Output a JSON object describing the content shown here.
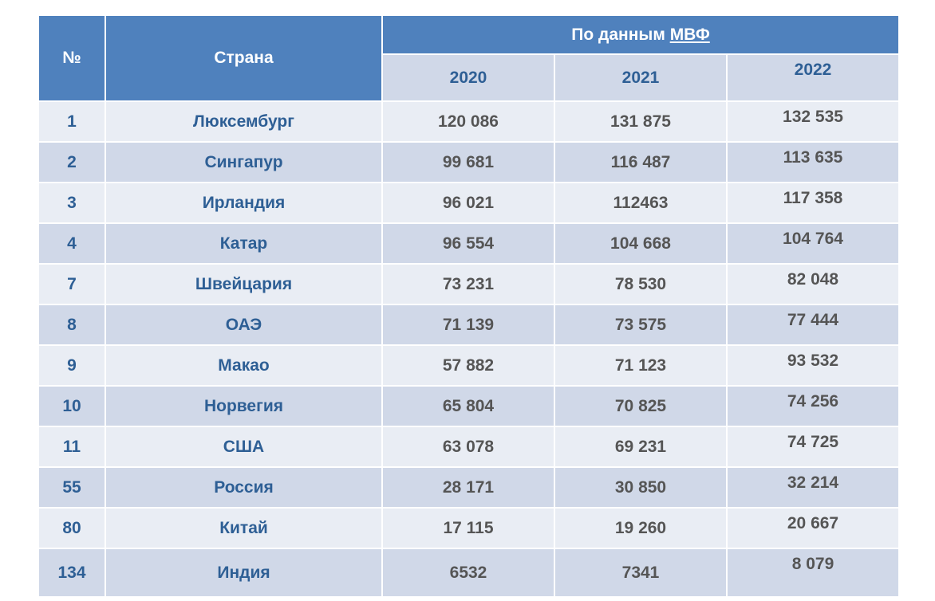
{
  "header": {
    "number": "№",
    "country": "Страна",
    "group_prefix": "По данным ",
    "group_link": "МВФ",
    "years": [
      "2020",
      "2021",
      "2022"
    ]
  },
  "colors": {
    "header": "#4f81bd",
    "row_light": "#e9edf4",
    "row_dark": "#d0d8e8",
    "label_text": "#2e5f95",
    "value_text": "#555555"
  },
  "rows": [
    {
      "rank": "1",
      "country": "Люксембург",
      "v2020": "120 086",
      "v2021": "131 875",
      "v2022": "132 535"
    },
    {
      "rank": "2",
      "country": "Сингапур",
      "v2020": "99 681",
      "v2021": "116 487",
      "v2022": "113 635"
    },
    {
      "rank": "3",
      "country": "Ирландия",
      "v2020": "96 021",
      "v2021": "112463",
      "v2022": "117 358"
    },
    {
      "rank": "4",
      "country": "Катар",
      "v2020": "96 554",
      "v2021": "104 668",
      "v2022": "104 764"
    },
    {
      "rank": "7",
      "country": "Швейцария",
      "v2020": "73 231",
      "v2021": "78 530",
      "v2022": "82 048"
    },
    {
      "rank": "8",
      "country": "ОАЭ",
      "v2020": "71 139",
      "v2021": "73 575",
      "v2022": "77 444"
    },
    {
      "rank": "9",
      "country": "Макао",
      "v2020": "57 882",
      "v2021": "71 123",
      "v2022": "93 532"
    },
    {
      "rank": "10",
      "country": "Норвегия",
      "v2020": "65 804",
      "v2021": "70 825",
      "v2022": "74 256"
    },
    {
      "rank": "11",
      "country": "США",
      "v2020": "63 078",
      "v2021": "69 231",
      "v2022": "74 725"
    },
    {
      "rank": "55",
      "country": "Россия",
      "v2020": "28 171",
      "v2021": "30 850",
      "v2022": "32 214"
    },
    {
      "rank": "80",
      "country": "Китай",
      "v2020": "17 115",
      "v2021": "19 260",
      "v2022": "20 667"
    },
    {
      "rank": "134",
      "country": "Индия",
      "v2020": "6532",
      "v2021": "7341",
      "v2022": "8 079"
    }
  ]
}
